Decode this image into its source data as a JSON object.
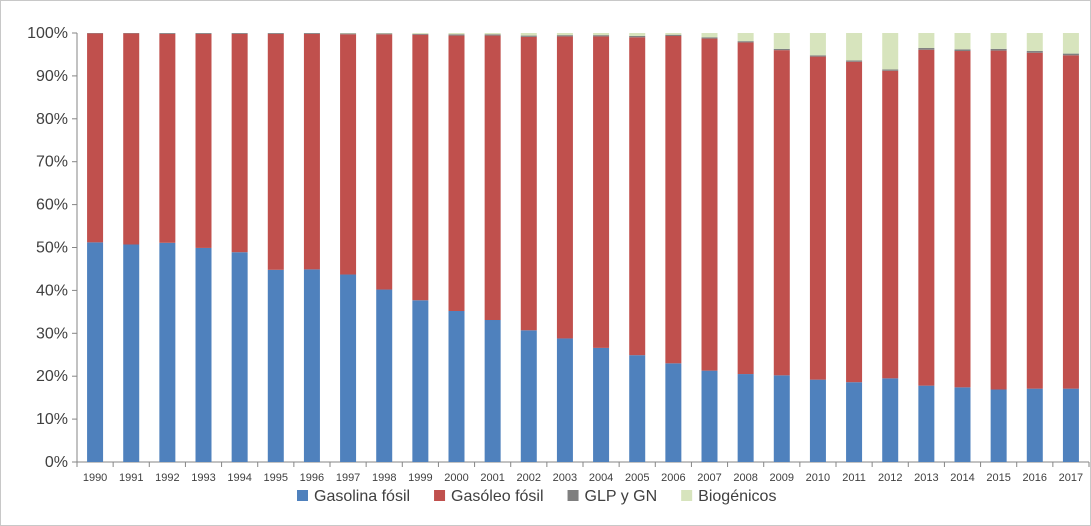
{
  "chart_data": {
    "type": "bar",
    "stacked": true,
    "normalized_percent": true,
    "title": "",
    "xlabel": "",
    "ylabel": "",
    "ylim": [
      0,
      100
    ],
    "y_ticks": [
      "0%",
      "10%",
      "20%",
      "30%",
      "40%",
      "50%",
      "60%",
      "70%",
      "80%",
      "90%",
      "100%"
    ],
    "grid": false,
    "legend_position": "bottom",
    "categories": [
      "1990",
      "1991",
      "1992",
      "1993",
      "1994",
      "1995",
      "1996",
      "1997",
      "1998",
      "1999",
      "2000",
      "2001",
      "2002",
      "2003",
      "2004",
      "2005",
      "2006",
      "2007",
      "2008",
      "2009",
      "2010",
      "2011",
      "2012",
      "2013",
      "2014",
      "2015",
      "2016",
      "2017"
    ],
    "series": [
      {
        "name": "Gasolina fósil",
        "color": "#4f81bd",
        "values": [
          51.2,
          50.7,
          51.1,
          49.9,
          48.9,
          44.8,
          44.9,
          43.7,
          40.2,
          37.7,
          35.2,
          33.1,
          30.7,
          28.8,
          26.6,
          24.9,
          23.0,
          21.3,
          20.5,
          20.2,
          19.2,
          18.6,
          19.5,
          17.8,
          17.4,
          16.9,
          17.1,
          17.1
        ]
      },
      {
        "name": "Gasóleo fósil",
        "color": "#c0504d",
        "values": [
          48.7,
          49.2,
          48.7,
          49.9,
          50.9,
          55.0,
          54.9,
          56.0,
          59.5,
          61.9,
          64.2,
          66.3,
          68.4,
          70.4,
          72.6,
          74.1,
          76.3,
          77.4,
          77.3,
          75.8,
          75.3,
          74.7,
          71.7,
          78.3,
          78.4,
          79.0,
          78.3,
          77.7
        ]
      },
      {
        "name": "GLP y GN",
        "color": "#7f7f7f",
        "values": [
          0.1,
          0.1,
          0.2,
          0.2,
          0.2,
          0.2,
          0.2,
          0.2,
          0.2,
          0.2,
          0.3,
          0.3,
          0.3,
          0.3,
          0.3,
          0.3,
          0.3,
          0.3,
          0.3,
          0.3,
          0.3,
          0.3,
          0.3,
          0.4,
          0.4,
          0.4,
          0.4,
          0.4
        ]
      },
      {
        "name": "Biogénicos",
        "color": "#d7e4bd",
        "values": [
          0.0,
          0.0,
          0.0,
          0.0,
          0.0,
          0.0,
          0.0,
          0.1,
          0.1,
          0.2,
          0.3,
          0.3,
          0.6,
          0.5,
          0.5,
          0.7,
          0.4,
          1.0,
          1.9,
          3.7,
          5.2,
          6.4,
          8.5,
          3.5,
          3.8,
          3.7,
          4.2,
          4.8
        ]
      }
    ]
  }
}
